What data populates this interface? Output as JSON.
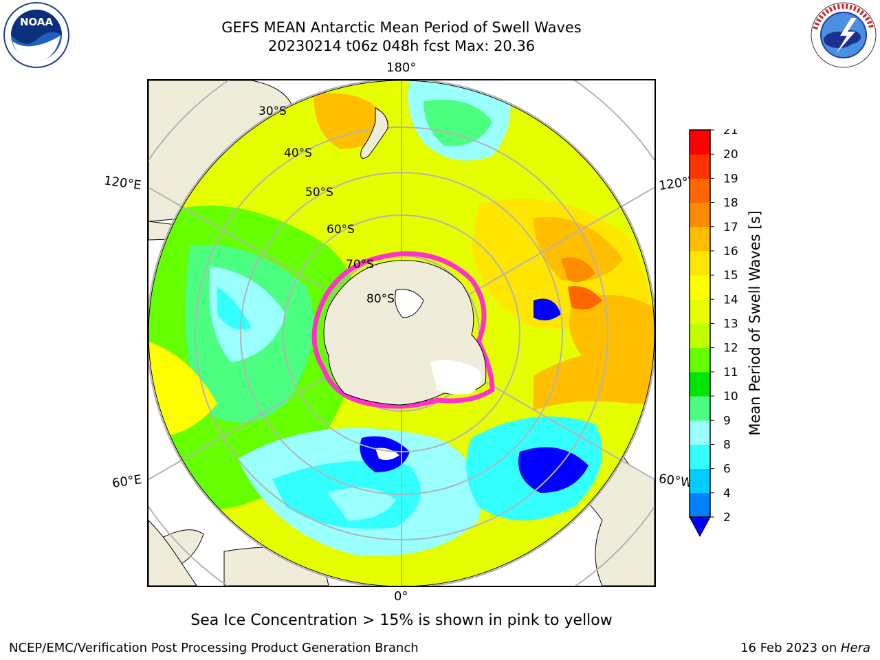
{
  "title": {
    "line1": "GEFS MEAN Antarctic Mean Period of Swell Waves",
    "line2": "20230214 t06z 048h fcst   Max: 20.36"
  },
  "logos": {
    "noaa": {
      "text": "NOAA",
      "ring_text": "NATIONAL OCEANIC AND ATMOSPHERIC ADMINISTRATION · U.S. DEPARTMENT OF COMMERCE"
    },
    "nws": {
      "ring_text": "NATIONAL WEATHER SERVICE"
    }
  },
  "map": {
    "projection": "south-polar-stereographic",
    "lon_labels": {
      "top": "180°",
      "bottom": "0°",
      "upper_left": "120°E",
      "lower_left": "60°E",
      "upper_right": "120°W",
      "lower_right": "60°W"
    },
    "lat_labels": [
      "30°S",
      "40°S",
      "50°S",
      "60°S",
      "70°S",
      "80°S"
    ],
    "colors": {
      "land": "#efedd9",
      "grid": "#b3b3b3",
      "ice_pink": "#ff33cc",
      "ice_white": "#ffffff"
    }
  },
  "colorbar": {
    "label": "Mean Period of Swell Waves [s]",
    "ticks": [
      "2",
      "4",
      "6",
      "8",
      "9",
      "10",
      "11",
      "12",
      "13",
      "14",
      "15",
      "16",
      "17",
      "18",
      "19",
      "20",
      "21"
    ],
    "colors": [
      "#0080ff",
      "#00ccff",
      "#33ffff",
      "#99ffff",
      "#4dff80",
      "#00e600",
      "#66ff00",
      "#bfff00",
      "#e6ff00",
      "#ffff00",
      "#ffe600",
      "#ffbf00",
      "#ff8c00",
      "#ff6600",
      "#ff3300",
      "#ff0000"
    ],
    "under_color": "#0000ff"
  },
  "caption": "Sea Ice Concentration > 15% is shown in pink to yellow",
  "footer": {
    "credit": "NCEP/EMC/Verification Post Processing Product Generation Branch",
    "date_prefix": "16 Feb 2023 on ",
    "host": "Hera"
  }
}
